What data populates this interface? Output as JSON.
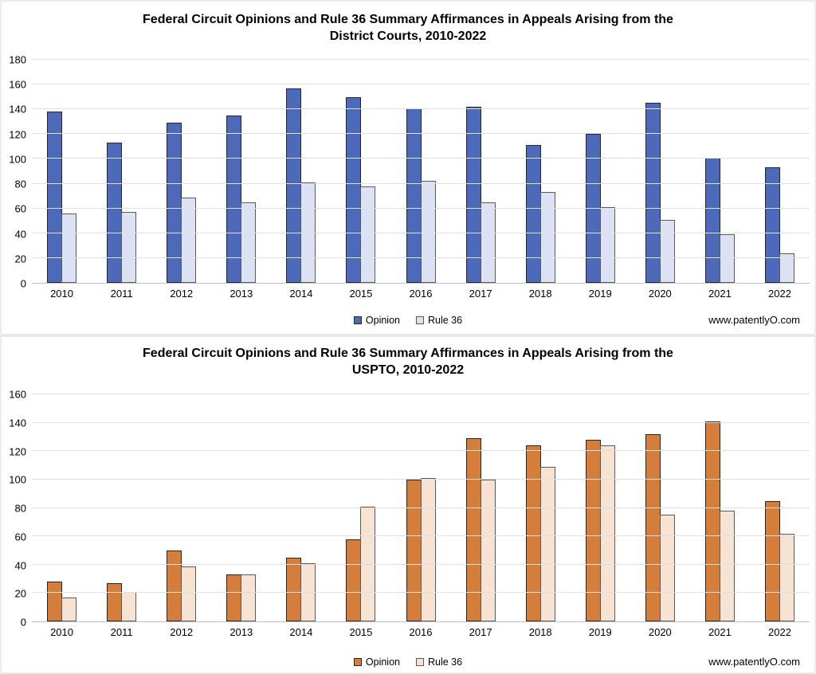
{
  "chart_data": [
    {
      "id": "district-courts",
      "type": "bar",
      "title": "Federal Circuit Opinions and Rule 36 Summary Affirmances in Appeals Arising from the District Courts, 2010-2022",
      "title_lines": [
        "Federal Circuit Opinions and Rule 36 Summary Affirmances in Appeals Arising from the",
        "District Courts, 2010-2022"
      ],
      "categories": [
        "2010",
        "2011",
        "2012",
        "2013",
        "2014",
        "2015",
        "2016",
        "2017",
        "2018",
        "2019",
        "2020",
        "2021",
        "2022"
      ],
      "series": [
        {
          "name": "Opinion",
          "color": "#4d69b9",
          "border": "#262626",
          "values": [
            138,
            113,
            129,
            135,
            157,
            150,
            141,
            142,
            111,
            120,
            145,
            101,
            93
          ]
        },
        {
          "name": "Rule 36",
          "color": "#dce2f3",
          "border": "#595959",
          "values": [
            56,
            57,
            69,
            65,
            81,
            78,
            82,
            65,
            73,
            61,
            51,
            39,
            24
          ]
        }
      ],
      "xlabel": "",
      "ylabel": "",
      "ylim": [
        0,
        180
      ],
      "ytick_step": 20,
      "grid": true,
      "legend_position": "bottom",
      "attribution": "www.patentlyO.com"
    },
    {
      "id": "uspto",
      "type": "bar",
      "title": "Federal Circuit Opinions and Rule 36 Summary Affirmances in Appeals Arising from the USPTO, 2010-2022",
      "title_lines": [
        "Federal Circuit Opinions and Rule 36 Summary Affirmances in Appeals Arising from the",
        "USPTO, 2010-2022"
      ],
      "categories": [
        "2010",
        "2011",
        "2012",
        "2013",
        "2014",
        "2015",
        "2016",
        "2017",
        "2018",
        "2019",
        "2020",
        "2021",
        "2022"
      ],
      "series": [
        {
          "name": "Opinion",
          "color": "#d57d3b",
          "border": "#262626",
          "values": [
            28,
            27,
            50,
            33,
            45,
            58,
            100,
            129,
            124,
            128,
            132,
            141,
            85
          ]
        },
        {
          "name": "Rule 36",
          "color": "#f7e3d4",
          "border": "#595959",
          "values": [
            17,
            21,
            39,
            33,
            41,
            81,
            101,
            100,
            109,
            124,
            75,
            78,
            62
          ]
        }
      ],
      "xlabel": "",
      "ylabel": "",
      "ylim": [
        0,
        160
      ],
      "ytick_step": 20,
      "grid": true,
      "legend_position": "bottom",
      "attribution": "www.patentlyO.com"
    }
  ]
}
